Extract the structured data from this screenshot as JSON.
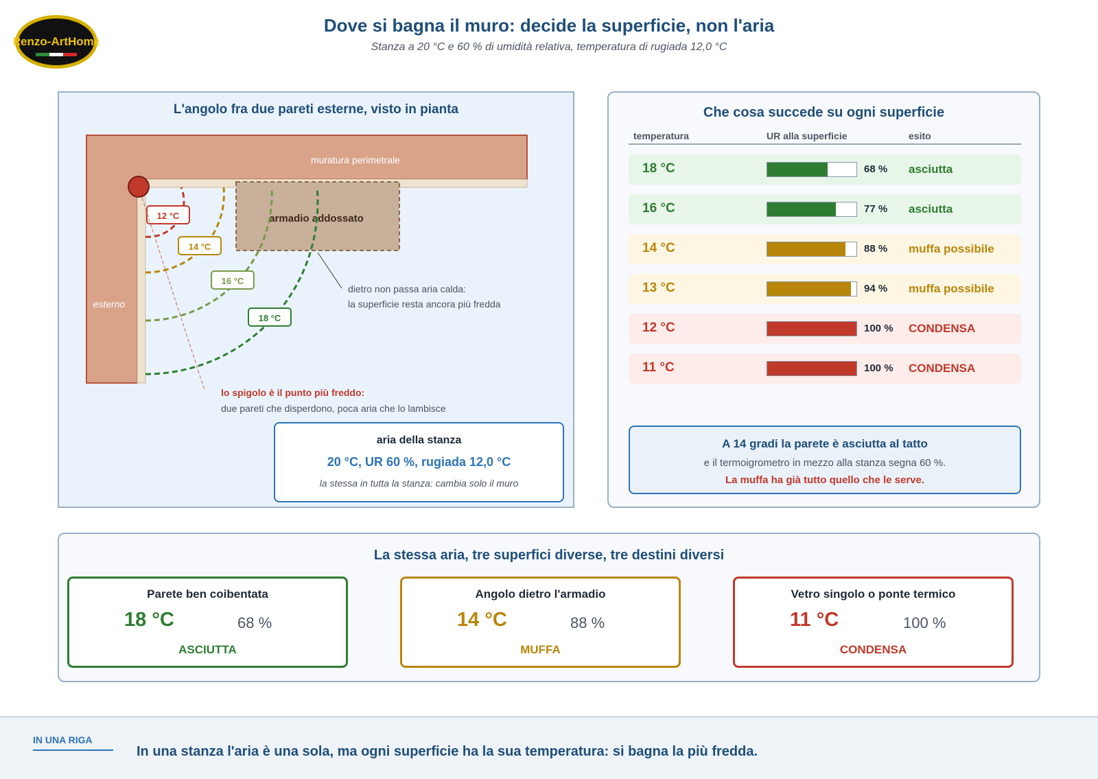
{
  "logo": {
    "text": "Renzo-ArtHome"
  },
  "header": {
    "title": "Dove si bagna il muro: decide la superficie, non l'aria",
    "subtitle": "Stanza a 20 °C e 60 % di umidità relativa, temperatura di rugiada 12,0 °C"
  },
  "plan": {
    "title": "L'angolo fra due pareti esterne, visto in pianta",
    "wall_label": "muratura perimetrale",
    "outside_label": "esterno",
    "wardrobe_label": "armadio addossato",
    "isotherms": [
      "12 °C",
      "14 °C",
      "16 °C",
      "18 °C"
    ],
    "wardrobe_note_1": "dietro non passa aria calda:",
    "wardrobe_note_2": "la superficie resta ancora più fredda",
    "corner_note_title": "lo spigolo è il punto più freddo:",
    "corner_note_text": "due pareti che disperdono, poca aria che lo lambisce",
    "air": {
      "title": "aria della stanza",
      "values": "20 °C, UR 60 %, rugiada 12,0 °C",
      "note": "la stessa in tutta la stanza: cambia solo il muro"
    }
  },
  "surfaces": {
    "title": "Che cosa succede su ogni superficie",
    "columns": [
      "temperatura",
      "UR alla superficie",
      "esito"
    ],
    "rows": [
      {
        "temp": "18 °C",
        "rh": 68,
        "rh_label": "68 %",
        "outcome": "asciutta",
        "status": "dry"
      },
      {
        "temp": "16 °C",
        "rh": 77,
        "rh_label": "77 %",
        "outcome": "asciutta",
        "status": "dry"
      },
      {
        "temp": "14 °C",
        "rh": 88,
        "rh_label": "88 %",
        "outcome": "muffa possibile",
        "status": "mold"
      },
      {
        "temp": "13 °C",
        "rh": 94,
        "rh_label": "94 %",
        "outcome": "muffa possibile",
        "status": "mold"
      },
      {
        "temp": "12 °C",
        "rh": 100,
        "rh_label": "100 %",
        "outcome": "CONDENSA",
        "status": "cond"
      },
      {
        "temp": "11 °C",
        "rh": 100,
        "rh_label": "100 %",
        "outcome": "CONDENSA",
        "status": "cond"
      }
    ],
    "info": {
      "title": "A 14 gradi la parete è asciutta al tatto",
      "line": "e il termoigrometro in mezzo alla stanza segna 60 %.",
      "alert": "La muffa ha già tutto quello che le serve."
    }
  },
  "comparison": {
    "title": "La stessa aria, tre superfici diverse, tre destini diversi",
    "cards": [
      {
        "title": "Parete ben coibentata",
        "temp": "18 °C",
        "rh": "68 %",
        "outcome": "ASCIUTTA",
        "status": "dry"
      },
      {
        "title": "Angolo dietro l'armadio",
        "temp": "14 °C",
        "rh": "88 %",
        "outcome": "MUFFA",
        "status": "mold"
      },
      {
        "title": "Vetro singolo o ponte termico",
        "temp": "11 °C",
        "rh": "100 %",
        "outcome": "CONDENSA",
        "status": "cond"
      }
    ]
  },
  "footer": {
    "tag": "IN UNA RIGA",
    "text": "In una stanza l'aria è una sola, ma ogni superficie ha la sua temperatura: si bagna la più fredda."
  },
  "colors": {
    "dry": "#2e7d32",
    "dry_bg": "#e8f5e9",
    "mold": "#b8860b",
    "mold_bg": "#fdf6e3",
    "cond": "#c0392b",
    "cond_bg": "#fdecea",
    "title": "#1f4e79",
    "accent": "#2e74b5"
  }
}
